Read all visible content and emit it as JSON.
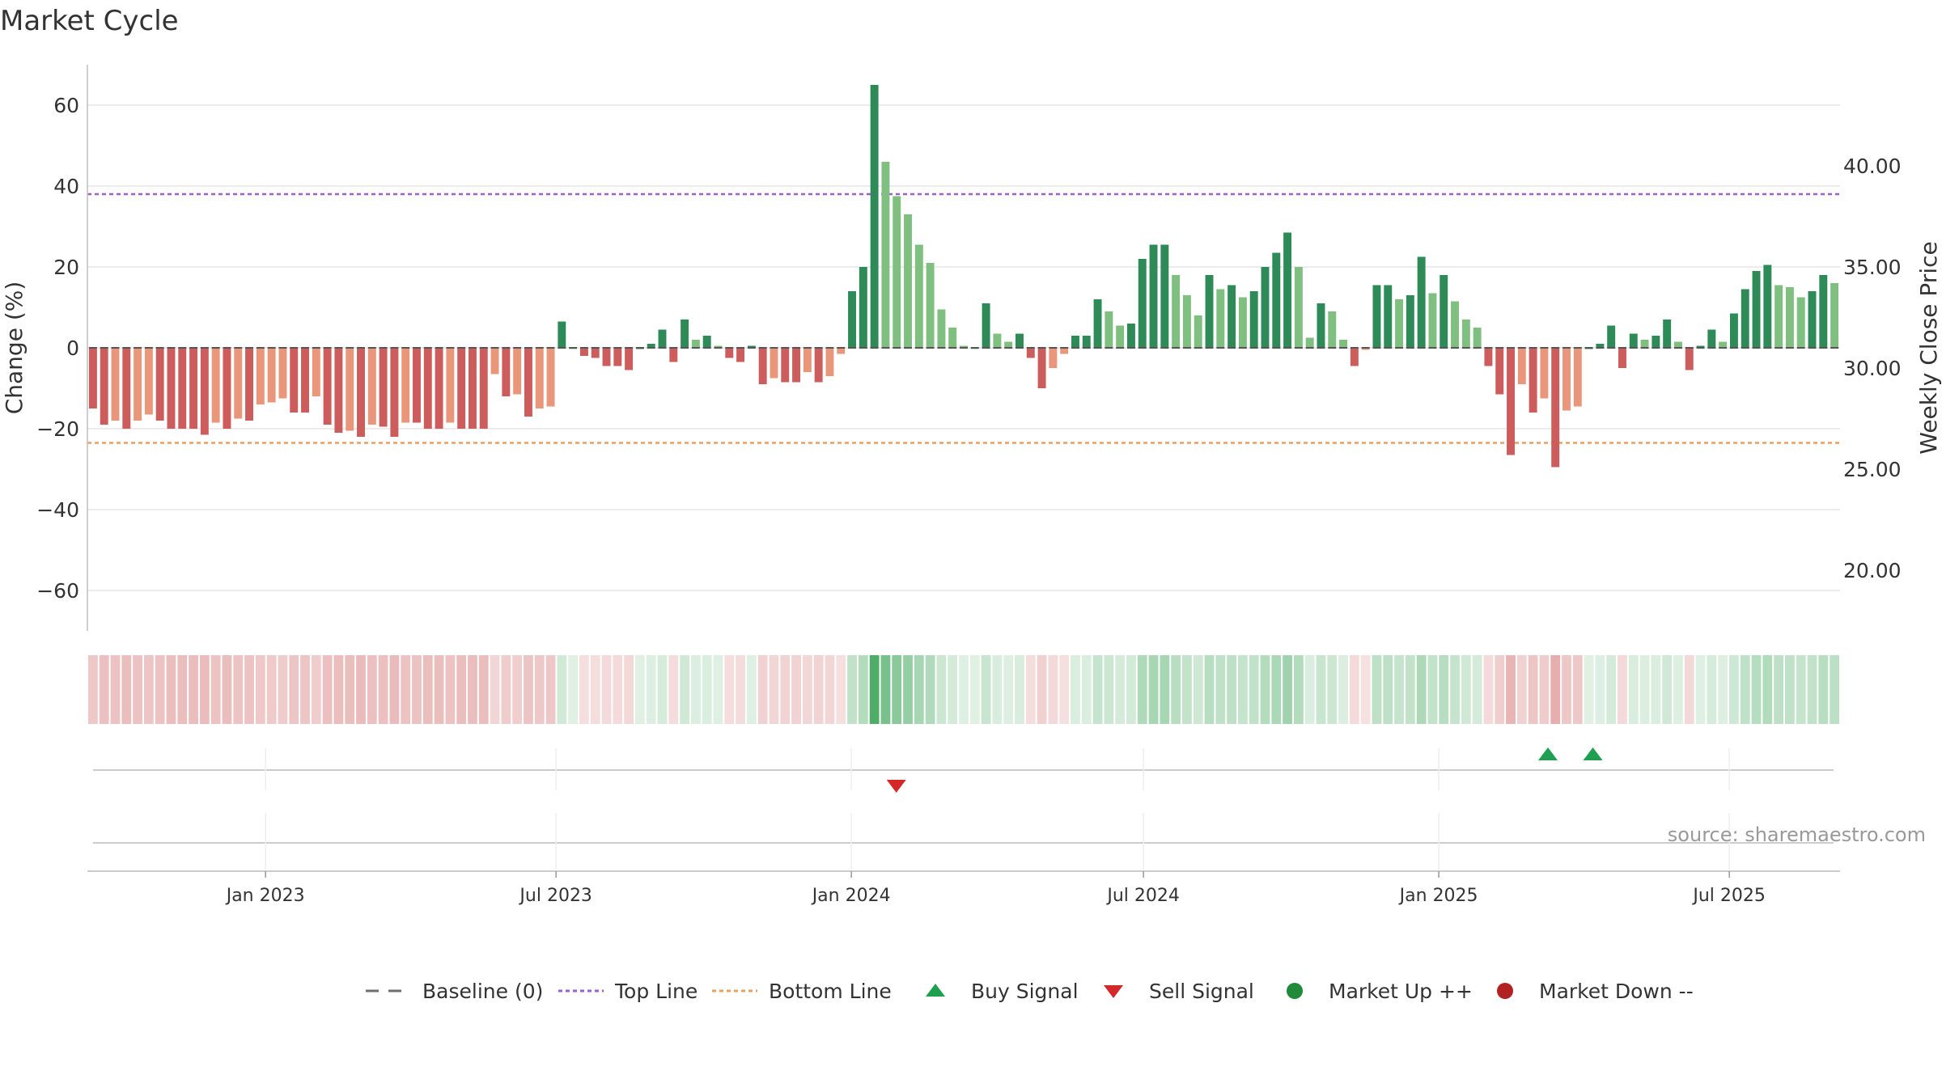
{
  "chart_data": {
    "type": "bar",
    "title": "Market Cycle",
    "ylabel": "Change (%)",
    "y2label": "Weekly Close Price",
    "ylim": [
      -70,
      70
    ],
    "y2lim": [
      17.0,
      45.0
    ],
    "yticks": [
      60,
      40,
      20,
      0,
      -20,
      -40,
      -60
    ],
    "ytick_labels": [
      "60",
      "40",
      "20",
      "0",
      "−20",
      "−40",
      "−60"
    ],
    "y2ticks": [
      40.0,
      35.0,
      30.0,
      25.0,
      20.0
    ],
    "y2tick_labels": [
      "40.00",
      "35.00",
      "30.00",
      "25.00",
      "20.00"
    ],
    "x_start": "2022-09-12",
    "x_end": "2025-09-08",
    "x_ticks": [
      "2023-01-01",
      "2023-07-01",
      "2024-01-01",
      "2024-07-01",
      "2025-01-01",
      "2025-07-01"
    ],
    "x_tick_labels": [
      "Jan 2023",
      "Jul 2023",
      "Jan 2024",
      "Jul 2024",
      "Jan 2025",
      "Jul 2025"
    ],
    "top_line": 38,
    "bottom_line": -23.5,
    "baseline": 0,
    "week_start": "2022-09-12",
    "values": [
      -15,
      -19,
      -18,
      -20,
      -18,
      -16.5,
      -18,
      -20,
      -20,
      -20,
      -21.5,
      -18.5,
      -20,
      -17.5,
      -18,
      -14,
      -13.5,
      -12.5,
      -16,
      -16,
      -12,
      -19,
      -21,
      -20.5,
      -22,
      -19,
      -19.5,
      -22,
      -18.5,
      -18.5,
      -20,
      -20,
      -18.5,
      -20,
      -20,
      -20,
      -6.5,
      -12,
      -11.5,
      -17,
      -15,
      -14.5,
      6.5,
      0,
      -2,
      -2.5,
      -4.5,
      -4.5,
      -5.5,
      0,
      1,
      4.5,
      -3.5,
      7,
      2,
      3,
      0.5,
      -2.5,
      -3.5,
      0.5,
      -9,
      -7.5,
      -8.5,
      -8.5,
      -6,
      -8.5,
      -7,
      -1.5,
      14,
      20,
      65,
      46,
      37.5,
      33,
      25.5,
      21,
      9.5,
      5,
      0.5,
      0,
      11,
      3.5,
      1.5,
      3.5,
      -2.5,
      -10,
      -5,
      -1.5,
      3,
      3,
      12,
      9,
      5.5,
      6,
      22,
      25.5,
      25.5,
      18,
      13,
      8,
      18,
      14.5,
      15.5,
      12.5,
      14,
      20,
      23.5,
      28.5,
      20,
      2.5,
      11,
      9,
      2,
      -4.5,
      -0.5,
      15.5,
      15.5,
      12,
      13,
      22.5,
      13.5,
      18,
      11.5,
      7,
      5,
      -4.5,
      -11.5,
      -26.5,
      -9,
      -16,
      -12.5,
      -29.5,
      -15.5,
      -14.5,
      0,
      1,
      5.5,
      -5,
      3.5,
      2,
      3,
      7,
      1.5,
      -5.5,
      0.5,
      4.5,
      1.5,
      8.5,
      14.5,
      19,
      20.5,
      15.5,
      15,
      12.5,
      14,
      18,
      16
    ],
    "markers": [
      {
        "type": "sell",
        "date": "2024-01-29"
      },
      {
        "type": "buy",
        "date": "2025-03-10"
      },
      {
        "type": "buy",
        "date": "2025-04-07"
      }
    ],
    "source": "source: sharemaestro.com",
    "legend_position": "bottom-center",
    "legend": [
      {
        "label": "Baseline (0)",
        "symbol": "dash-line",
        "color": "#6e6e6e"
      },
      {
        "label": "Top Line",
        "symbol": "dot-line",
        "color": "#9a5fd0"
      },
      {
        "label": "Bottom Line",
        "symbol": "dot-line",
        "color": "#e8a060"
      },
      {
        "label": "Buy Signal",
        "symbol": "triangle-up",
        "color": "#1fa050"
      },
      {
        "label": "Sell Signal",
        "symbol": "triangle-down",
        "color": "#d62728"
      },
      {
        "label": "Market Up ++",
        "symbol": "circle",
        "color": "#218a3a"
      },
      {
        "label": "Market Down --",
        "symbol": "circle",
        "color": "#b22222"
      }
    ],
    "colors": {
      "up_strong": "#2e8b57",
      "up_weak": "#7fbf7f",
      "down_strong": "#cd5c5c",
      "down_weak": "#e9967a",
      "heat_up": "#2e9e4a",
      "heat_down": "#cd5c5c",
      "top_line": "#9a5fd0",
      "bottom_line": "#e8a060",
      "buy": "#1fa050",
      "sell": "#d62728"
    },
    "grid": true
  }
}
